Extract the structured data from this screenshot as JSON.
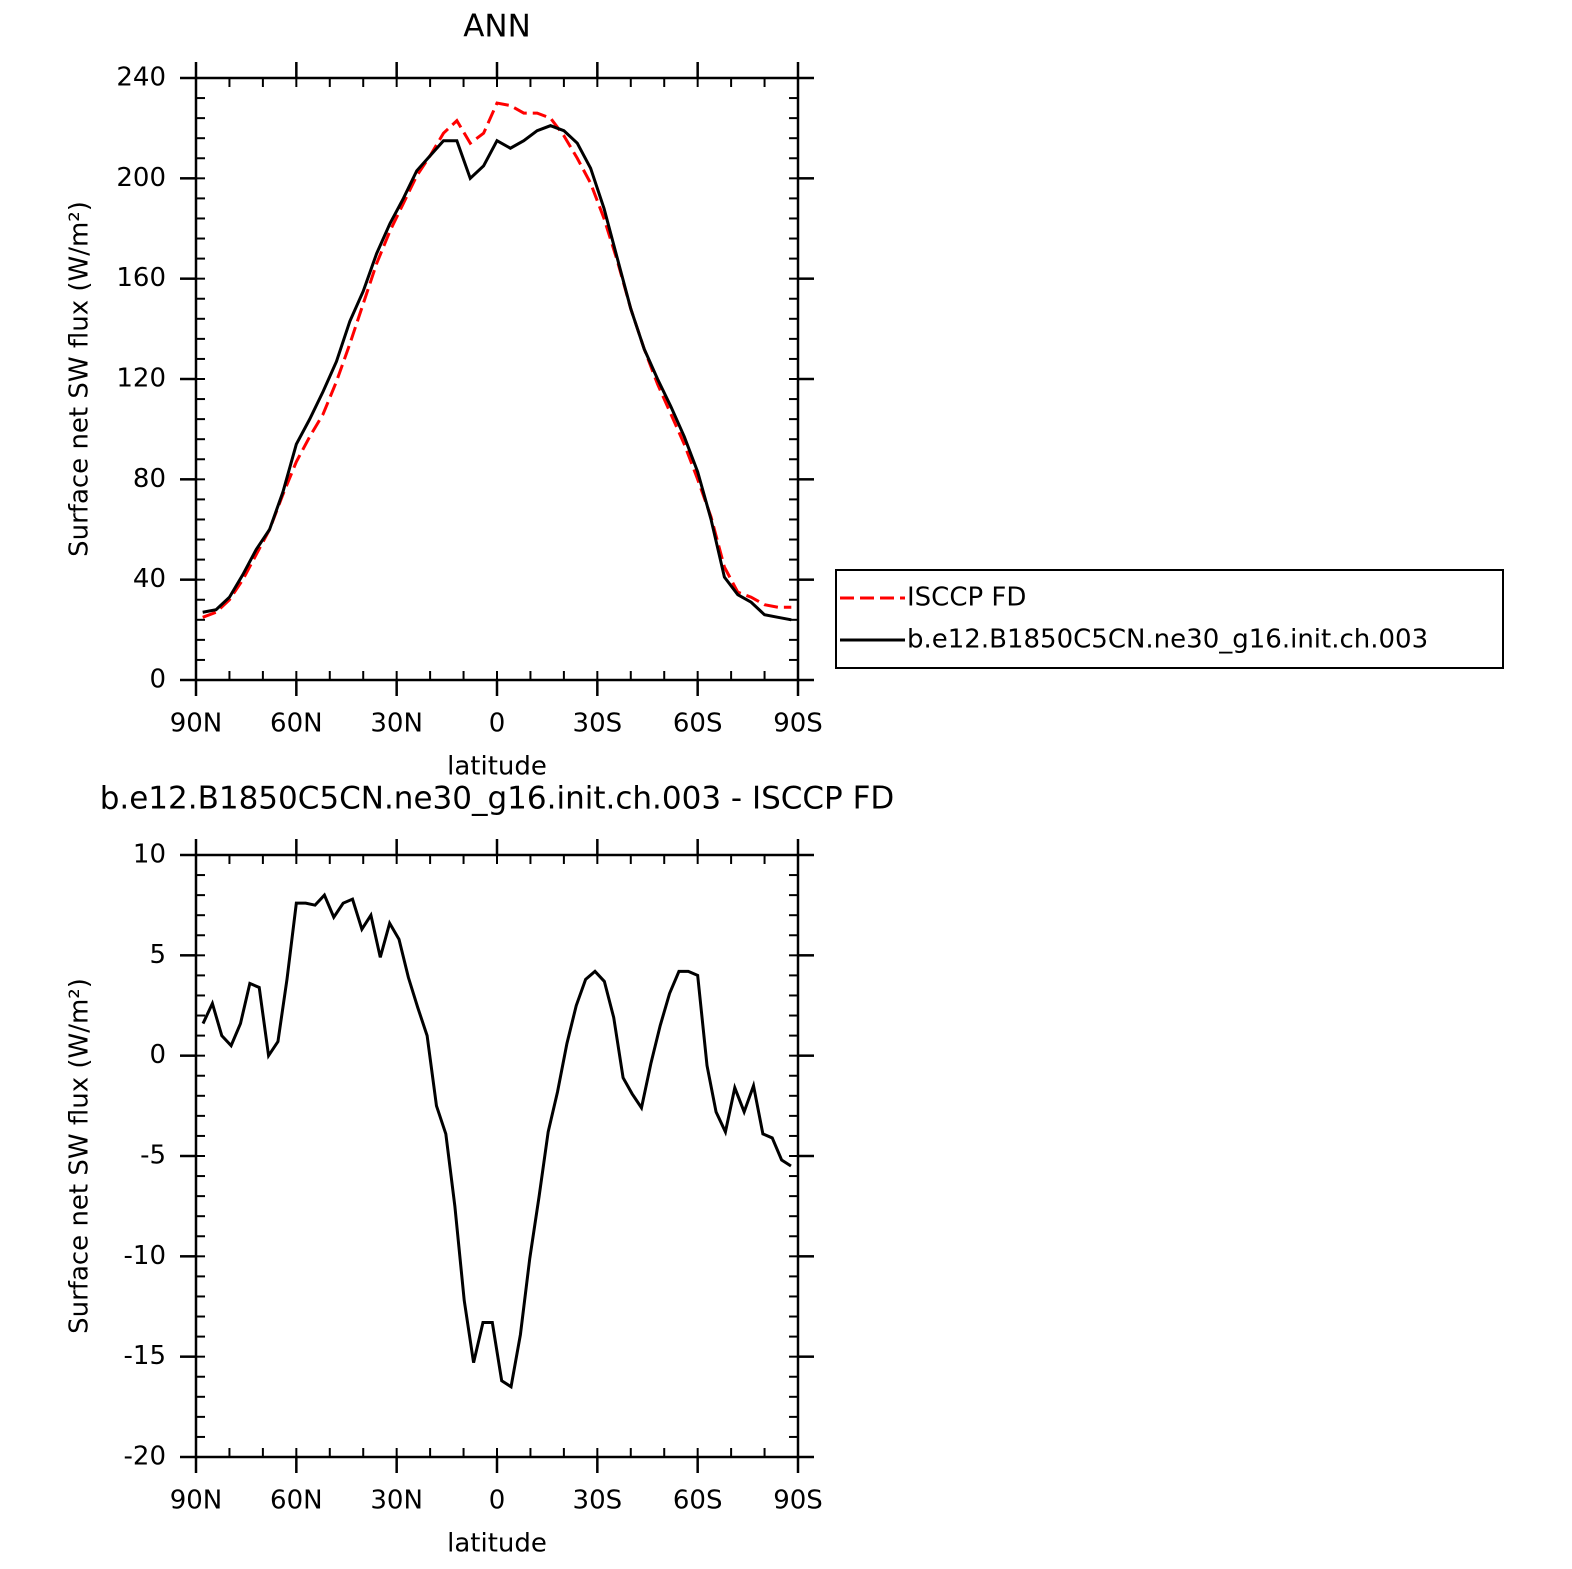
{
  "chart_data": [
    {
      "type": "line",
      "title": "ANN",
      "xlabel": "latitude",
      "ylabel": "Surface net SW flux (W/m²)",
      "x": [
        88,
        84,
        80,
        76,
        72,
        68,
        64,
        60,
        56,
        52,
        48,
        44,
        40,
        36,
        32,
        28,
        24,
        20,
        16,
        12,
        8,
        4,
        0,
        -4,
        -8,
        -12,
        -16,
        -20,
        -24,
        -28,
        -32,
        -36,
        -40,
        -44,
        -48,
        -52,
        -56,
        -60,
        -64,
        -68,
        -72,
        -76,
        -80,
        -84,
        -88
      ],
      "series": [
        {
          "name": "ISCCP FD",
          "color": "#ff0000",
          "linestyle": "dashed",
          "values": [
            25,
            27,
            32,
            40,
            50,
            60,
            74,
            87,
            97,
            106,
            119,
            134,
            150,
            166,
            179,
            190,
            201,
            209,
            218,
            223,
            214,
            218,
            230,
            229,
            226,
            226,
            224,
            217,
            208,
            198,
            184,
            167,
            148,
            132,
            118,
            106,
            94,
            80,
            65,
            45,
            35,
            33,
            30,
            29,
            29
          ]
        },
        {
          "name": "b.e12.B1850C5CN.ne30_g16.init.ch.003",
          "color": "#000000",
          "linestyle": "solid",
          "values": [
            27,
            28,
            33,
            42,
            52,
            60,
            75,
            94,
            104,
            115,
            127,
            143,
            155,
            170,
            182,
            192,
            203,
            209,
            215,
            215,
            200,
            205,
            215,
            212,
            215,
            219,
            221,
            219,
            214,
            204,
            188,
            168,
            148,
            132,
            120,
            109,
            97,
            83,
            64,
            41,
            34,
            31,
            26,
            25,
            24
          ]
        }
      ],
      "xlim": [
        90,
        -90
      ],
      "xticks": [
        {
          "value": 90,
          "label": "90N"
        },
        {
          "value": 60,
          "label": "60N"
        },
        {
          "value": 30,
          "label": "30N"
        },
        0,
        {
          "value": -30,
          "label": "30S"
        },
        {
          "value": -60,
          "label": "60S"
        },
        {
          "value": -90,
          "label": "90S"
        }
      ],
      "ylim": [
        0,
        240
      ],
      "yticks": [
        0,
        40,
        80,
        120,
        160,
        200,
        240
      ],
      "legend": "right"
    },
    {
      "type": "line",
      "title": "b.e12.B1850C5CN.ne30_g16.init.ch.003 - ISCCP FD",
      "xlabel": "latitude",
      "ylabel": "Surface net SW flux (W/m²)",
      "x": [
        87.9,
        85.1,
        82.3,
        79.5,
        76.7,
        73.9,
        71.1,
        68.3,
        65.5,
        62.8,
        60.0,
        57.2,
        54.4,
        51.6,
        48.8,
        46.0,
        43.2,
        40.4,
        37.7,
        34.9,
        32.1,
        29.3,
        26.5,
        23.7,
        20.9,
        18.1,
        15.3,
        12.6,
        9.8,
        7.0,
        4.2,
        1.4,
        -1.4,
        -4.2,
        -7.0,
        -9.8,
        -12.6,
        -15.3,
        -18.1,
        -20.9,
        -23.7,
        -26.5,
        -29.3,
        -32.1,
        -34.9,
        -37.7,
        -40.4,
        -43.2,
        -46.0,
        -48.8,
        -51.6,
        -54.4,
        -57.2,
        -60.0,
        -62.8,
        -65.5,
        -68.3,
        -71.1,
        -73.9,
        -76.7,
        -79.5,
        -82.3,
        -85.1,
        -87.9
      ],
      "values": [
        1.6,
        2.6,
        1.0,
        0.5,
        1.6,
        3.6,
        3.4,
        0,
        0.7,
        3.8,
        7.6,
        7.6,
        7.5,
        8.0,
        6.9,
        7.6,
        7.8,
        6.3,
        7.0,
        4.9,
        6.6,
        5.8,
        3.9,
        2.4,
        1.0,
        -2.5,
        -3.9,
        -7.5,
        -12.2,
        -15.3,
        -13.3,
        -13.3,
        -16.2,
        -16.5,
        -13.9,
        -10.1,
        -7.0,
        -3.8,
        -1.8,
        0.6,
        2.5,
        3.8,
        4.2,
        3.7,
        1.9,
        -1.1,
        -1.9,
        -2.6,
        -0.4,
        1.5,
        3.1,
        4.2,
        4.2,
        4.0,
        -0.5,
        -2.8,
        -3.8,
        -1.6,
        -2.8,
        -1.5,
        -3.9,
        -4.1,
        -5.2,
        -5.5
      ],
      "color": "#000000",
      "xlim": [
        90,
        -90
      ],
      "xticks": [
        {
          "value": 90,
          "label": "90N"
        },
        {
          "value": 60,
          "label": "60N"
        },
        {
          "value": 30,
          "label": "30N"
        },
        0,
        {
          "value": -30,
          "label": "30S"
        },
        {
          "value": -60,
          "label": "60S"
        },
        {
          "value": -90,
          "label": "90S"
        }
      ],
      "ylim": [
        -20,
        10
      ],
      "yticks": [
        -20,
        -15,
        -10,
        -5,
        0,
        5,
        10
      ]
    }
  ]
}
